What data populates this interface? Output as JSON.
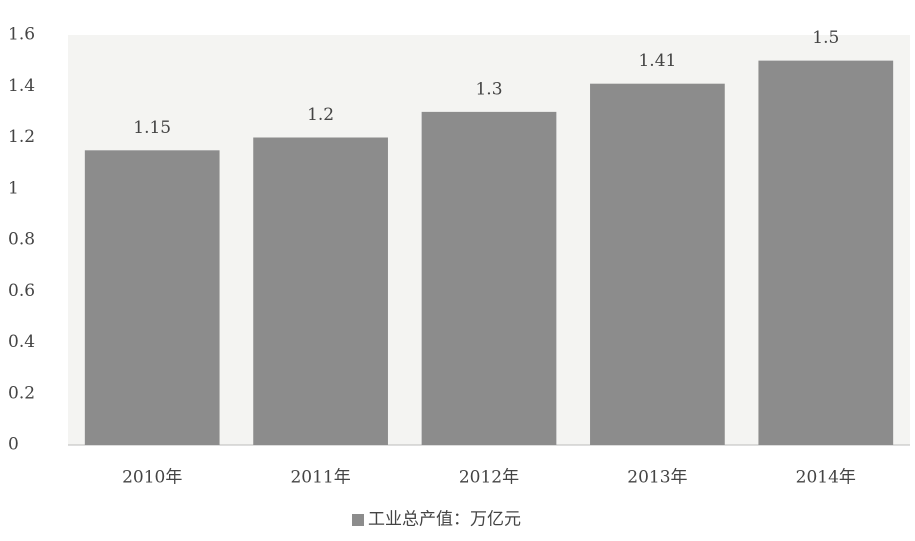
{
  "chart_data": {
    "type": "bar",
    "categories": [
      "2010年",
      "2011年",
      "2012年",
      "2013年",
      "2014年"
    ],
    "series": [
      {
        "name": "工业总产值：万亿元",
        "color": "#8c8c8c",
        "values": [
          1.15,
          1.2,
          1.3,
          1.41,
          1.5
        ]
      }
    ],
    "ylim": [
      0,
      1.6
    ],
    "yticks": [
      0,
      0.2,
      0.4,
      0.6,
      0.8,
      1,
      1.2,
      1.4,
      1.6
    ],
    "legend": "bottom",
    "grid": false
  }
}
